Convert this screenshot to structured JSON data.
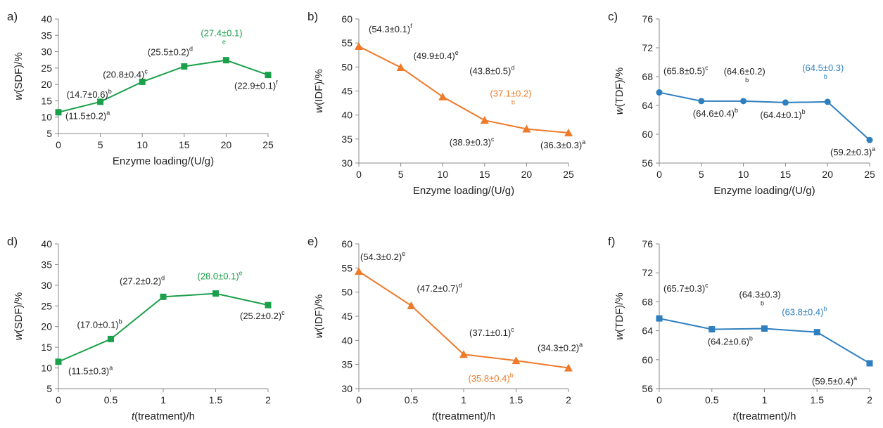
{
  "chart_data": [
    {
      "type": "line",
      "panel_label": "a)",
      "color": "#1aa04a",
      "marker": "square",
      "xlabel": "Enzyme loading/(U/g)",
      "ylabel_italic": "w",
      "ylabel_rest": "(SDF)/%",
      "xlim": [
        0,
        25
      ],
      "ylim": [
        5,
        40
      ],
      "xticks": [
        "0",
        "5",
        "10",
        "15",
        "20",
        "25"
      ],
      "yticks": [
        "5",
        "10",
        "15",
        "20",
        "25",
        "30",
        "35",
        "40"
      ],
      "x": [
        0,
        5,
        10,
        15,
        20,
        25
      ],
      "values": [
        11.5,
        14.7,
        20.8,
        25.5,
        27.4,
        22.9
      ],
      "labels": [
        "(11.5±0.2)",
        "(14.7±0.6)",
        "(20.8±0.4)",
        "(25.5±0.2)",
        "(27.4±0.1)",
        "(22.9±0.1)"
      ],
      "letters": [
        "a",
        "b",
        "c",
        "d",
        "e",
        "f"
      ]
    },
    {
      "type": "line",
      "panel_label": "b)",
      "color": "#ee7a2a",
      "marker": "triangle",
      "xlabel": "Enzyme loading/(U/g)",
      "ylabel_italic": "w",
      "ylabel_rest": "(IDF)/%",
      "xlim": [
        0,
        25
      ],
      "ylim": [
        30,
        60
      ],
      "xticks": [
        "0",
        "5",
        "10",
        "15",
        "20",
        "25"
      ],
      "yticks": [
        "30",
        "35",
        "40",
        "45",
        "50",
        "55",
        "60"
      ],
      "x": [
        0,
        5,
        10,
        15,
        20,
        25
      ],
      "values": [
        54.3,
        49.9,
        43.8,
        38.9,
        37.1,
        36.3
      ],
      "labels": [
        "(54.3±0.1)",
        "(49.9±0.4)",
        "(43.8±0.5)",
        "(38.9±0.3)",
        "(37.1±0.2)",
        "(36.3±0.3)"
      ],
      "letters": [
        "f",
        "e",
        "d",
        "c",
        "b",
        "a"
      ]
    },
    {
      "type": "line",
      "panel_label": "c)",
      "color": "#2f7fbf",
      "marker": "circle",
      "xlabel": "Enzyme loading/(U/g)",
      "ylabel_italic": "w",
      "ylabel_rest": "(TDF)/%",
      "xlim": [
        0,
        25
      ],
      "ylim": [
        56,
        76
      ],
      "xticks": [
        "0",
        "5",
        "10",
        "15",
        "20",
        "25"
      ],
      "yticks": [
        "56",
        "60",
        "64",
        "68",
        "72",
        "76"
      ],
      "x": [
        0,
        5,
        10,
        15,
        20,
        25
      ],
      "values": [
        65.8,
        64.6,
        64.6,
        64.4,
        64.5,
        59.2
      ],
      "labels": [
        "(65.8±0.5)",
        "(64.6±0.4)",
        "(64.6±0.2)",
        "(64.4±0.1)",
        "(64.5±0.3)",
        "(59.2±0.3)"
      ],
      "letters": [
        "c",
        "b",
        "b",
        "b",
        "b",
        "a"
      ]
    },
    {
      "type": "line",
      "panel_label": "d)",
      "color": "#1aa04a",
      "marker": "square",
      "xlabel_italic": "t",
      "xlabel_rest": "(treatment)/h",
      "ylabel_italic": "w",
      "ylabel_rest": "(SDF)/%",
      "xlim": [
        0,
        2
      ],
      "ylim": [
        5,
        40
      ],
      "xticks": [
        "0",
        "0.5",
        "1",
        "1.5",
        "2"
      ],
      "yticks": [
        "5",
        "10",
        "15",
        "20",
        "25",
        "30",
        "35",
        "40"
      ],
      "x": [
        0,
        0.5,
        1,
        1.5,
        2
      ],
      "values": [
        11.5,
        17.0,
        27.2,
        28.0,
        25.2
      ],
      "labels": [
        "(11.5±0.3)",
        "(17.0±0.1)",
        "(27.2±0.2)",
        "(28.0±0.1)",
        "(25.2±0.2)"
      ],
      "letters": [
        "a",
        "b",
        "d",
        "e",
        "c"
      ]
    },
    {
      "type": "line",
      "panel_label": "e)",
      "color": "#ee7a2a",
      "marker": "triangle",
      "xlabel_italic": "t",
      "xlabel_rest": "(treatment)/h",
      "ylabel_italic": "w",
      "ylabel_rest": "(IDF)/%",
      "xlim": [
        0,
        2
      ],
      "ylim": [
        30,
        60
      ],
      "xticks": [
        "0",
        "0.5",
        "1",
        "1.5",
        "2"
      ],
      "yticks": [
        "30",
        "35",
        "40",
        "45",
        "50",
        "55",
        "60"
      ],
      "x": [
        0,
        0.5,
        1,
        1.5,
        2
      ],
      "values": [
        54.3,
        47.2,
        37.1,
        35.8,
        34.3
      ],
      "labels": [
        "(54.3±0.2)",
        "(47.2±0.7)",
        "(37.1±0.1)",
        "(35.8±0.4)",
        "(34.3±0.2)"
      ],
      "letters": [
        "e",
        "d",
        "c",
        "b",
        "a"
      ]
    },
    {
      "type": "line",
      "panel_label": "f)",
      "color": "#2f7fbf",
      "marker": "square",
      "xlabel_italic": "t",
      "xlabel_rest": "(treatment)/h",
      "ylabel_italic": "w",
      "ylabel_rest": "(TDF)/%",
      "xlim": [
        0,
        2
      ],
      "ylim": [
        56,
        76
      ],
      "xticks": [
        "0",
        "0.5",
        "1",
        "1.5",
        "2"
      ],
      "yticks": [
        "56",
        "60",
        "64",
        "68",
        "72",
        "76"
      ],
      "x": [
        0,
        0.5,
        1,
        1.5,
        2
      ],
      "values": [
        65.7,
        64.2,
        64.3,
        63.8,
        59.5
      ],
      "labels": [
        "(65.7±0.3)",
        "(64.2±0.6)",
        "(64.3±0.3)",
        "(63.8±0.4)",
        "(59.5±0.4)"
      ],
      "letters": [
        "c",
        "b",
        "b",
        "b",
        "a"
      ]
    }
  ]
}
